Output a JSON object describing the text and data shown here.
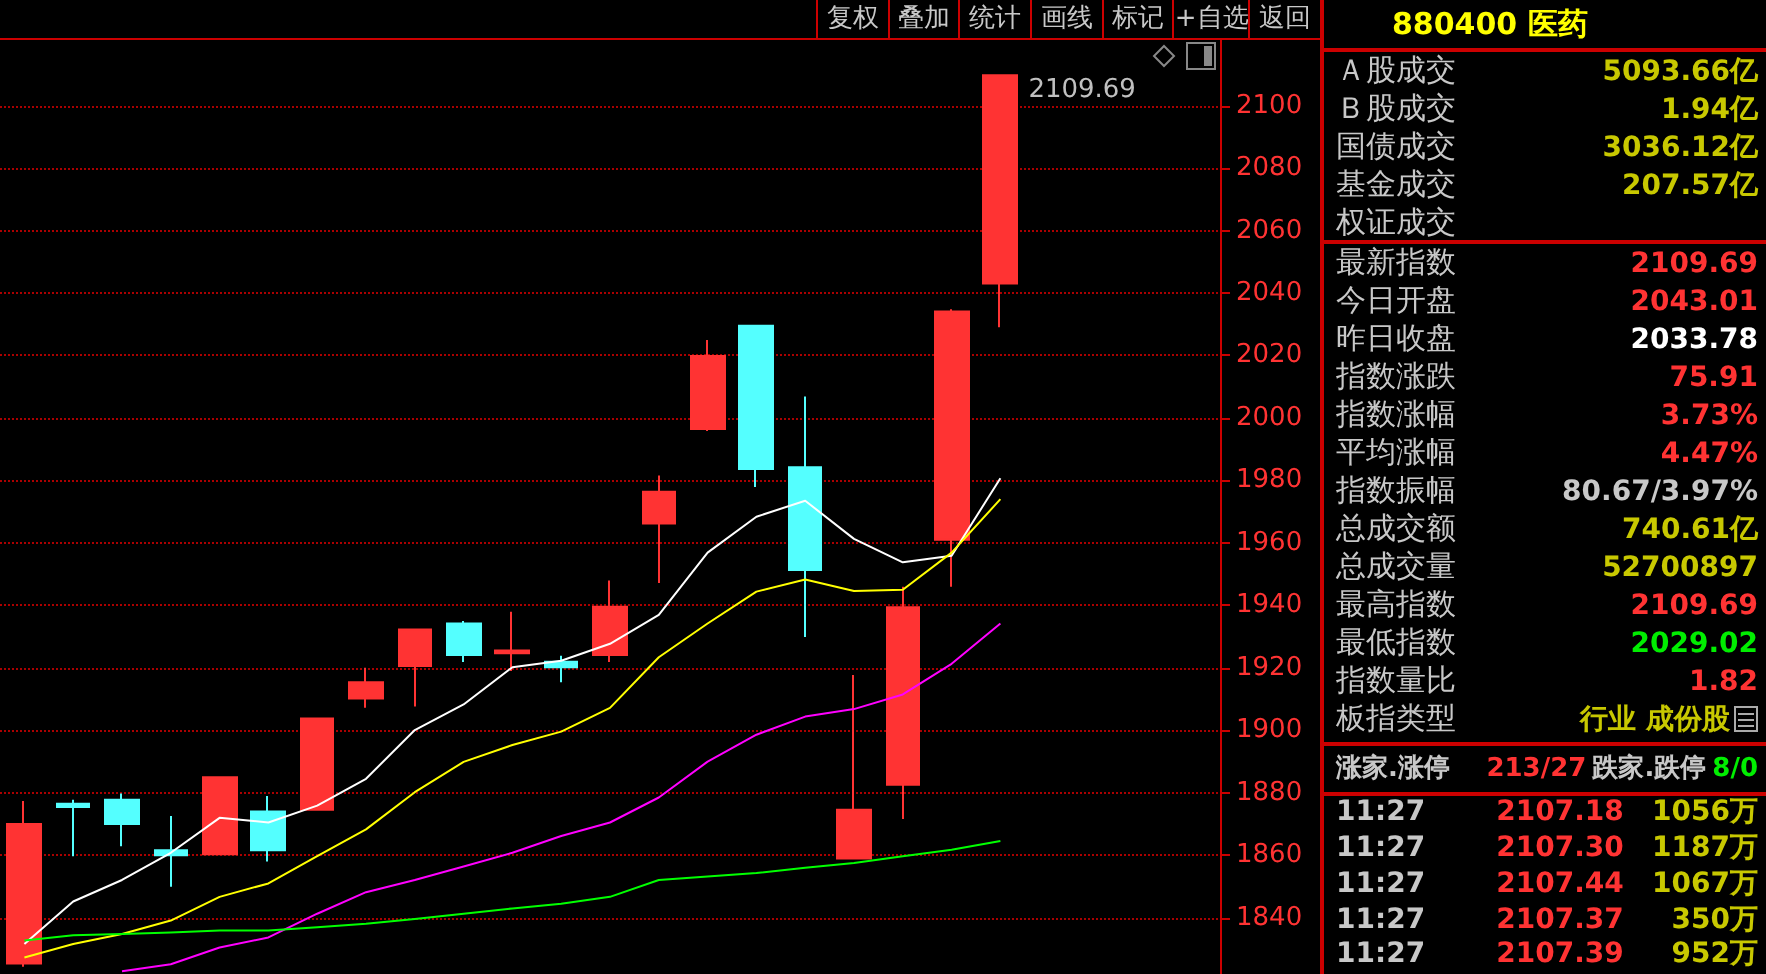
{
  "chart_data": [
    {
      "type": "other",
      "annotations": [
        "复权",
        "叠加",
        "统计",
        "画线",
        "标记",
        "+自选",
        "返回"
      ],
      "colors": [
        "#c8c8c8",
        "#c8c8c8",
        "#c8c8c8",
        "#c8c8c8",
        "#c8c8c8",
        "#c8c8c8",
        "#c8c8c8"
      ]
    },
    {
      "type": "candlestick",
      "categories": [
        null,
        null,
        null,
        null,
        null,
        null,
        null,
        null,
        null,
        null,
        null,
        null,
        null,
        null,
        null,
        null,
        null,
        null,
        null,
        null,
        null
      ],
      "ohlc": [
        [
          1825.4,
          1877.4,
          1824.3,
          1870
        ],
        [
          1876.5,
          1877.8,
          1859.7,
          1875.5
        ],
        [
          1877.8,
          1879.8,
          1862.9,
          1870
        ],
        [
          1861.6,
          1872.6,
          1849.9,
          1860
        ],
        [
          1860.3,
          1885,
          1860.3,
          1885
        ],
        [
          1874,
          1879,
          1858,
          1861.6
        ],
        [
          1874.6,
          1903.8,
          1874.6,
          1903.8
        ],
        [
          1910.2,
          1920,
          1907.2,
          1915.4
        ],
        [
          1920.6,
          1932.3,
          1907.6,
          1932.3
        ],
        [
          1934.2,
          1935,
          1921.9,
          1924.1
        ],
        [
          1924.7,
          1938,
          1919,
          1925.6
        ],
        [
          1922,
          1923.9,
          1915.4,
          1920.2
        ],
        [
          1924.1,
          1948,
          1921.9,
          1939.6
        ],
        [
          1966.2,
          1981.6,
          1947.2,
          1976.4
        ],
        [
          1996.5,
          2025,
          1995.8,
          2019.8
        ],
        [
          2029.5,
          2029.5,
          1977.9,
          1983.7
        ],
        [
          1984.2,
          2006.9,
          1929.9,
          1951.3
        ],
        [
          1859,
          1917.7,
          1859,
          1874.6
        ],
        [
          1882.6,
          1946,
          1871.6,
          1939.4
        ],
        [
          1961,
          2034.8,
          1946,
          2034.1
        ],
        [
          2043.01,
          2109.69,
          2029.02,
          2109.69
        ]
      ],
      "colors": [
        "#ff3333",
        "#54ffff",
        "#54ffff",
        "#54ffff",
        "#ff3333",
        "#54ffff",
        "#ff3333",
        "#ff3333",
        "#ff3333",
        "#54ffff",
        "#ff3333",
        "#54ffff",
        "#ff3333",
        "#ff3333",
        "#ff3333",
        "#54ffff",
        "#54ffff",
        "#ff3333",
        "#ff3333",
        "#ff3333",
        "#ff3333"
      ],
      "series": [
        {
          "type": "line",
          "color": "#ffffff",
          "values": [
            1831.6,
            1845.2,
            1852.1,
            1860.8,
            1872.0,
            1870.5,
            1875.9,
            1884.5,
            1900.1,
            1908.3,
            1920.2,
            1922.3,
            1927.7,
            1937.0,
            1956.9,
            1968.4,
            1973.5,
            1961.3,
            1953.8,
            1955.9,
            1980.7
          ]
        },
        {
          "type": "line",
          "color": "#ffff00",
          "values": [
            1827.3,
            1831.6,
            1834.8,
            1839.1,
            1846.7,
            1851.0,
            1859.7,
            1868.3,
            1880.2,
            1889.9,
            1895.3,
            1899.6,
            1907.2,
            1923.4,
            1934.2,
            1944.4,
            1948.3,
            1944.6,
            1945.0,
            1956.9,
            1974.0
          ]
        },
        {
          "type": "line",
          "color": "#ff00ff",
          "values": [
            null,
            null,
            1822.9,
            1825.1,
            1830.5,
            1833.7,
            1841.3,
            1848.2,
            1852.1,
            1856.4,
            1860.8,
            1866.2,
            1870.5,
            1878.5,
            1890.0,
            1898.6,
            1904.4,
            1906.8,
            1911.5,
            1921.3,
            1934.2
          ]
        },
        {
          "type": "line",
          "color": "#00ff00",
          "values": [
            1832.7,
            1834.4,
            1834.8,
            1835.3,
            1835.9,
            1835.9,
            1837.0,
            1838.1,
            1839.6,
            1841.3,
            1843.0,
            1844.5,
            1846.7,
            1852.1,
            1853.2,
            1854.3,
            1856.0,
            1857.5,
            1859.7,
            1861.8,
            1864.6
          ]
        }
      ],
      "ylim": [
        1822,
        2121
      ],
      "yticks": [
        1840,
        1860,
        1880,
        1900,
        1920,
        1940,
        1960,
        1980,
        2000,
        2020,
        2040,
        2060,
        2080,
        2100
      ],
      "grid": "y",
      "tick_labels": "y",
      "annotations": [
        "2109.69"
      ]
    },
    {
      "type": "other",
      "title": "880400 医药",
      "categories": [
        "Ａ股成交",
        "Ｂ股成交",
        "国债成交",
        "基金成交",
        "权证成交"
      ],
      "value_labels": [
        "5093.66亿",
        "1.94亿",
        "3036.12亿",
        "207.57亿",
        null
      ],
      "colors": [
        "#c8c800",
        "#c8c800",
        "#c8c800",
        "#c8c800",
        "#c8c800"
      ]
    },
    {
      "type": "other",
      "categories": [
        "最新指数",
        "今日开盘",
        "昨日收盘",
        "指数涨跌",
        "指数涨幅",
        "平均涨幅",
        "指数振幅",
        "总成交额",
        "总成交量",
        "最高指数",
        "最低指数",
        "指数量比",
        "板指类型"
      ],
      "value_labels": [
        "2109.69",
        "2043.01",
        "2033.78",
        "75.91",
        "3.73%",
        "4.47%",
        "80.67/3.97%",
        "740.61亿",
        "52700897",
        "2109.69",
        "2029.02",
        "1.82",
        "行业 成份股"
      ],
      "colors": [
        "#ff3333",
        "#ff3333",
        "#ffffff",
        "#ff3333",
        "#ff3333",
        "#ff3333",
        "#c8c8c8",
        "#c8c800",
        "#c8c800",
        "#ff3333",
        "#00ee00",
        "#ff3333",
        "#c8c800"
      ]
    },
    {
      "type": "other",
      "annotations": [
        "涨家.涨停",
        "213/27",
        "跌家.跌停",
        "8/0"
      ],
      "colors": [
        "#c8c8c8",
        "#ff3333",
        "#c8c8c8",
        "#00ee00"
      ]
    },
    {
      "type": "other",
      "annotations": [
        "11:27",
        "2107.18",
        "1056万",
        "11:27",
        "2107.30",
        "1187万",
        "11:27",
        "2107.44",
        "1067万",
        "11:27",
        "2107.37",
        "350万",
        "11:27",
        "2107.39",
        "952万"
      ],
      "colors": [
        "#c8c8c8",
        "#ff3333",
        "#c8c800",
        "#c8c8c8",
        "#ff3333",
        "#c8c800",
        "#c8c8c8",
        "#ff3333",
        "#c8c800",
        "#c8c8c8",
        "#ff3333",
        "#c8c800",
        "#c8c8c8",
        "#ff3333",
        "#c8c800"
      ]
    }
  ]
}
